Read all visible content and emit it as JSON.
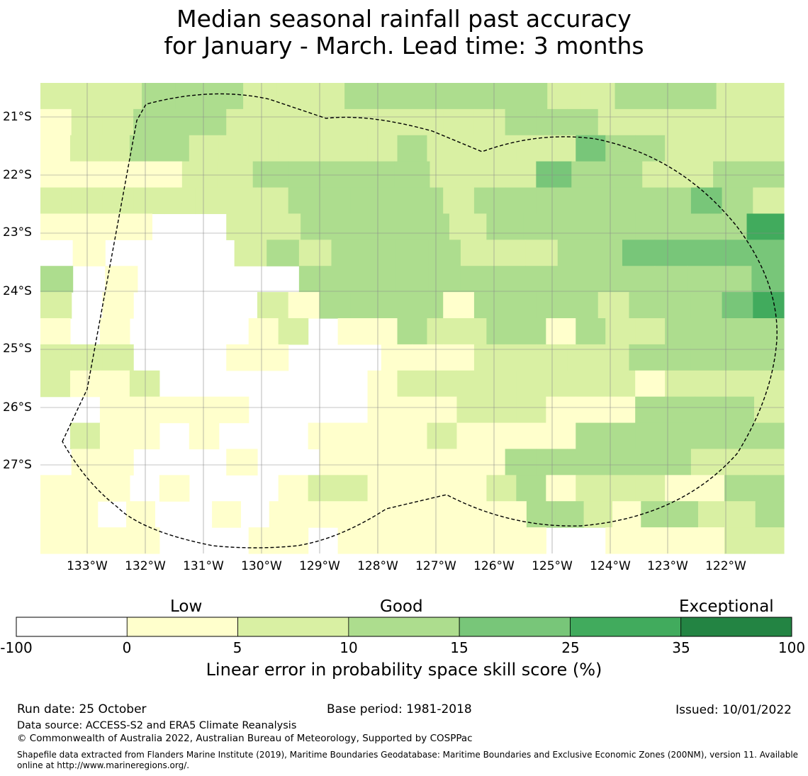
{
  "title": {
    "line1": "Median seasonal rainfall past accuracy",
    "line2": "for January - March. Lead time: 3 months"
  },
  "map": {
    "lat_labels": [
      "21°S",
      "22°S",
      "23°S",
      "24°S",
      "25°S",
      "26°S",
      "27°S"
    ],
    "lon_labels": [
      "133°W",
      "132°W",
      "131°W",
      "130°W",
      "129°W",
      "128°W",
      "127°W",
      "126°W",
      "125°W",
      "124°W",
      "123°W",
      "122°W"
    ],
    "eez_boundary": "dashed black line",
    "grid": [
      "1112221112222221122211",
      "011222111111111222111111",
      "0112211111112111113221111",
      "000011222221113221122",
      "111111112222212222222321",
      "000xx112222122222224",
      "x0xxxx12122221112233333",
      "2x0xxxxx222222222222223",
      "1x0xxxx10222202222122234",
      "0x0xxxx01x002112202112222",
      "111xxx00xxx0001111122222",
      "1001xxxxxxx01111111101111",
      "xx00000xxxx00011100022221",
      "x100x0xxx0000100002222222",
      "x00xxx0xx000000222222111",
      "000x0xxx01100001201110022",
      "00x0xx0x000000000221022112",
      "0000xxx00x0000000xx000011"
    ]
  },
  "legend": {
    "categories": [
      {
        "label": "Low",
        "position": "over 0-10"
      },
      {
        "label": "Good",
        "position": "over 10-15"
      },
      {
        "label": "Exceptional",
        "position": "over 35-100"
      }
    ],
    "boundaries": [
      "-100",
      "0",
      "5",
      "10",
      "15",
      "25",
      "35",
      "100"
    ],
    "colors": [
      "#ffffff",
      "#ffffcc",
      "#d9f0a3",
      "#addd8e",
      "#78c679",
      "#41ab5d",
      "#238443"
    ],
    "title": "Linear error in probability space skill score (%)"
  },
  "footer": {
    "run_date": "Run date: 25 October",
    "base_period": "Base period: 1981-2018",
    "issued": "Issued: 10/01/2022",
    "data_source": "Data source: ACCESS-S2 and ERA5 Climate Reanalysis",
    "copyright": "© Commonwealth of Australia 2022, Australian Bureau of Meteorology, Supported by COSPPac",
    "shapefile": "Shapefile data extracted from Flanders Marine Institute (2019), Maritime Boundaries Geodatabase: Maritime Boundaries and Exclusive Economic Zones (200NM), version 11. Available online at http://www.marineregions.org/."
  }
}
